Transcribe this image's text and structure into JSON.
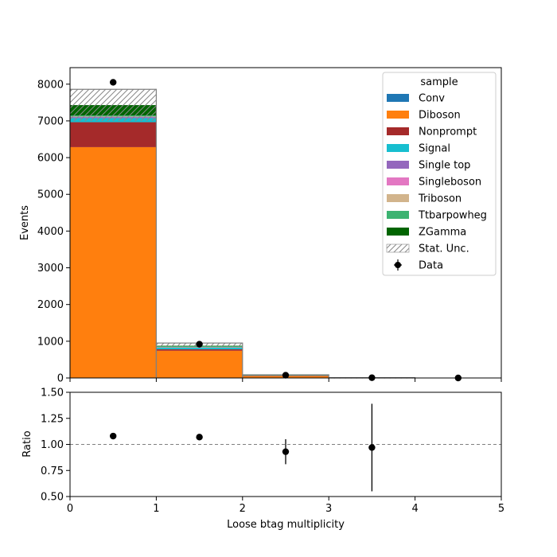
{
  "chart_data": [
    {
      "type": "bar",
      "stacked": true,
      "x_edges": [
        0,
        1,
        2,
        3,
        4,
        5
      ],
      "xlim": [
        0,
        5
      ],
      "ylim": [
        0,
        8450
      ],
      "ylabel": "Events",
      "x_ticks": [
        "0",
        "1",
        "2",
        "3",
        "4",
        "5"
      ],
      "y_ticks": [
        {
          "value": 0,
          "label": "0"
        },
        {
          "value": 1000,
          "label": "1000"
        },
        {
          "value": 2000,
          "label": "2000"
        },
        {
          "value": 3000,
          "label": "3000"
        },
        {
          "value": 4000,
          "label": "4000"
        },
        {
          "value": 5000,
          "label": "5000"
        },
        {
          "value": 6000,
          "label": "6000"
        },
        {
          "value": 7000,
          "label": "7000"
        },
        {
          "value": 8000,
          "label": "8000"
        }
      ],
      "series": [
        {
          "name": "Conv",
          "color": "#1f77b4",
          "values": [
            5,
            1,
            0,
            0,
            0
          ]
        },
        {
          "name": "Diboson",
          "color": "#ff7f0e",
          "values": [
            6280,
            740,
            60,
            5,
            0
          ]
        },
        {
          "name": "Nonprompt",
          "color": "#a52a2a",
          "values": [
            680,
            40,
            3,
            0,
            0
          ]
        },
        {
          "name": "Signal",
          "color": "#17becf",
          "values": [
            110,
            50,
            8,
            1,
            0
          ]
        },
        {
          "name": "Single top",
          "color": "#9467bd",
          "values": [
            30,
            5,
            1,
            0,
            0
          ]
        },
        {
          "name": "Singleboson",
          "color": "#e377c2",
          "values": [
            10,
            3,
            0,
            0,
            0
          ]
        },
        {
          "name": "Triboson",
          "color": "#d2b48c",
          "values": [
            5,
            2,
            0,
            0,
            0
          ]
        },
        {
          "name": "Ttbarpowheg",
          "color": "#3cb371",
          "values": [
            30,
            30,
            5,
            1,
            0
          ]
        },
        {
          "name": "ZGamma",
          "color": "#006400",
          "values": [
            280,
            5,
            0,
            0,
            0
          ]
        }
      ],
      "stat_unc": {
        "label": "Stat. Unc.",
        "low": [
          7000,
          860,
          70,
          6,
          0
        ],
        "high": [
          7860,
          950,
          86,
          9,
          0
        ]
      },
      "data": {
        "label": "Data",
        "x": [
          0.5,
          1.5,
          2.5,
          3.5,
          4.5
        ],
        "y": [
          8050,
          920,
          75,
          7,
          0
        ]
      },
      "legend": {
        "title": "sample",
        "position": "upper right"
      }
    },
    {
      "type": "scatter",
      "xlim": [
        0,
        5
      ],
      "ylim": [
        0.5,
        1.5
      ],
      "xlabel": "Loose btag multiplicity",
      "ylabel": "Ratio",
      "reference_line": 1.0,
      "x_ticks": [
        "0",
        "1",
        "2",
        "3",
        "4",
        "5"
      ],
      "y_ticks": [
        {
          "value": 0.5,
          "label": "0.50"
        },
        {
          "value": 0.75,
          "label": "0.75"
        },
        {
          "value": 1.0,
          "label": "1.00"
        },
        {
          "value": 1.25,
          "label": "1.25"
        },
        {
          "value": 1.5,
          "label": "1.50"
        }
      ],
      "points": [
        {
          "x": 0.5,
          "y": 1.08,
          "err": 0.0
        },
        {
          "x": 1.5,
          "y": 1.07,
          "err": 0.0
        },
        {
          "x": 2.5,
          "y": 0.93,
          "err": 0.12
        },
        {
          "x": 3.5,
          "y": 0.97,
          "err": 0.42
        }
      ]
    }
  ]
}
